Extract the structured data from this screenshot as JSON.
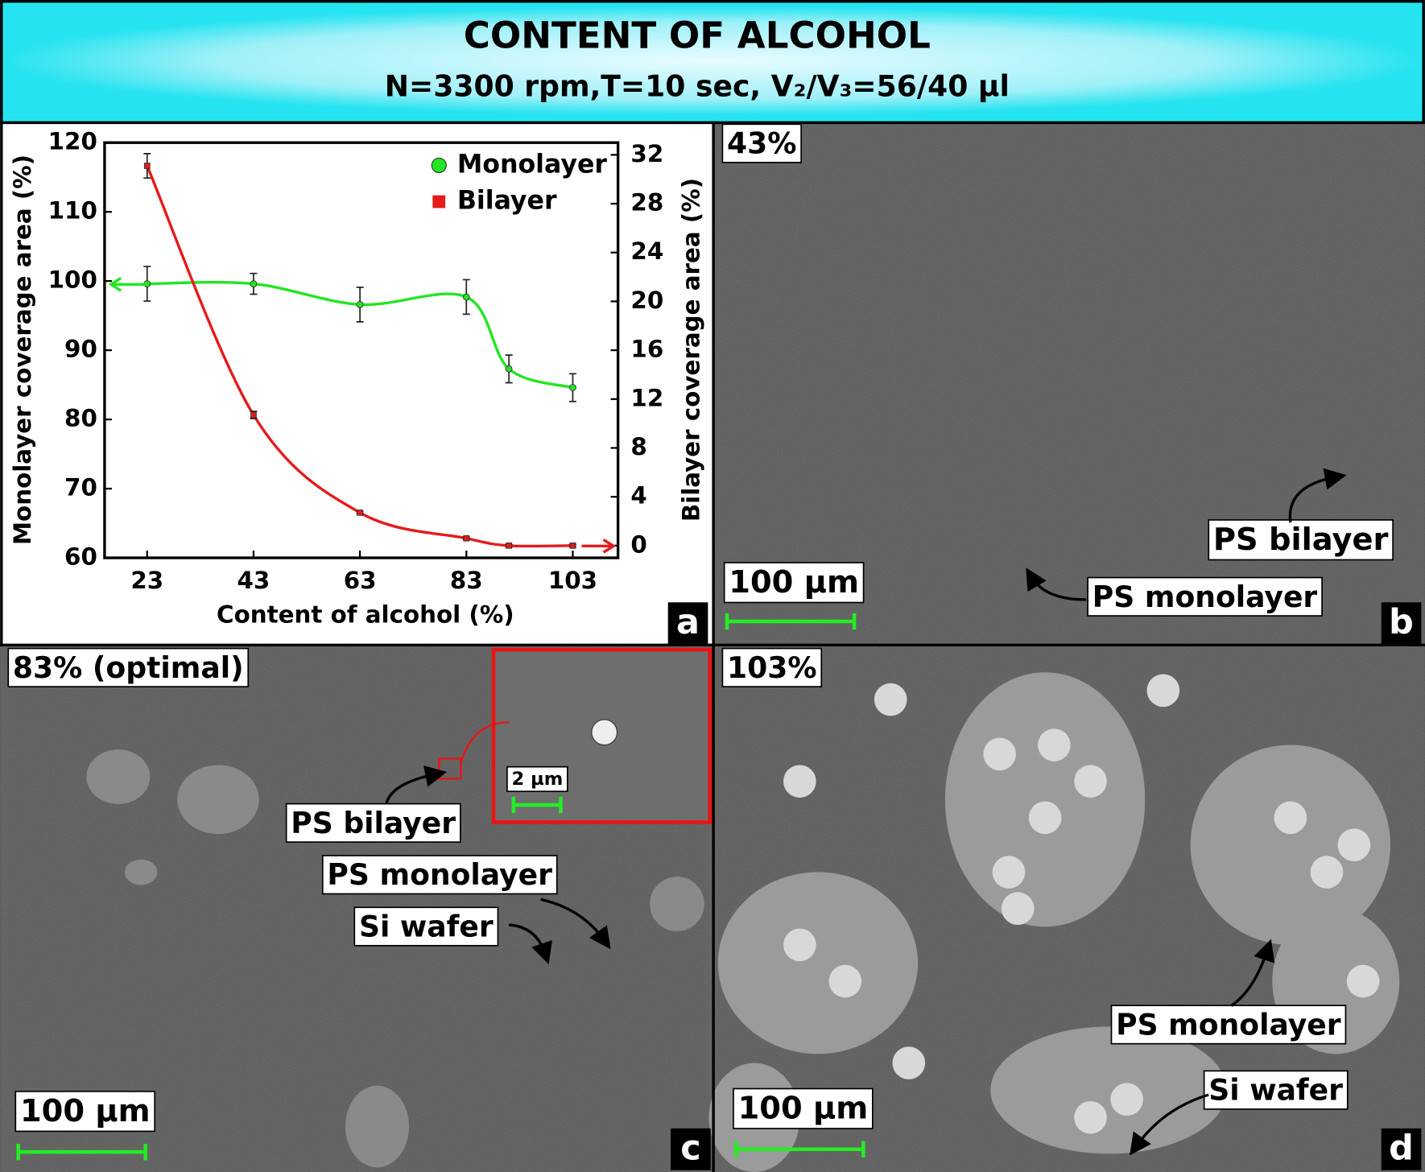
{
  "header": {
    "title": "CONTENT OF ALCOHOL",
    "subtitle": "N=3300 rpm,T=10 sec, V₂/V₃=56/40 µl"
  },
  "chart_data": {
    "type": "line",
    "x_label": "Content of alcohol (%)",
    "y_label": "Monolayer coverage area (%)",
    "y2_label": "Bilayer coverage area (%)",
    "x": [
      23,
      43,
      63,
      83,
      91,
      103
    ],
    "series": [
      {
        "name": "Monolayer",
        "color": "#22e622",
        "marker": "circle",
        "values": [
          99.6,
          99.6,
          96.6,
          97.7,
          87.3,
          84.6
        ],
        "errors": [
          2.5,
          1.5,
          2.5,
          2.5,
          2,
          2
        ]
      },
      {
        "name": "Bilayer",
        "color": "#e61a1a",
        "marker": "square",
        "axis": "y2",
        "values": [
          31.1,
          10.7,
          2.7,
          0.6,
          0,
          0
        ],
        "errors": [
          1,
          0.3,
          0.1,
          0.1,
          0.1,
          0.1
        ]
      }
    ],
    "xlim": [
      15,
      111.5
    ],
    "xticks": [
      23,
      43,
      63,
      83,
      103
    ],
    "ylim": [
      60,
      120
    ],
    "yticks": [
      60,
      70,
      80,
      90,
      100,
      110,
      120
    ],
    "y2lim": [
      -1,
      33
    ],
    "y2ticks": [
      0,
      4,
      8,
      12,
      16,
      20,
      24,
      28,
      32
    ],
    "legend": "upper right",
    "panel_letter": "a"
  },
  "panel_b": {
    "caption": "43%",
    "scale_bar": "100 µm",
    "labels": [
      "PS bilayer",
      "PS monolayer"
    ],
    "letter": "b"
  },
  "panel_c": {
    "caption": "83% (optimal)",
    "scale_bar": "100 µm",
    "inset_scale_bar": "2 µm",
    "labels": [
      "PS bilayer",
      "PS monolayer",
      "Si wafer"
    ],
    "letter": "c"
  },
  "panel_d": {
    "caption": "103%",
    "scale_bar": "100 µm",
    "labels": [
      "PS monolayer",
      "Si wafer"
    ],
    "letter": "d"
  }
}
